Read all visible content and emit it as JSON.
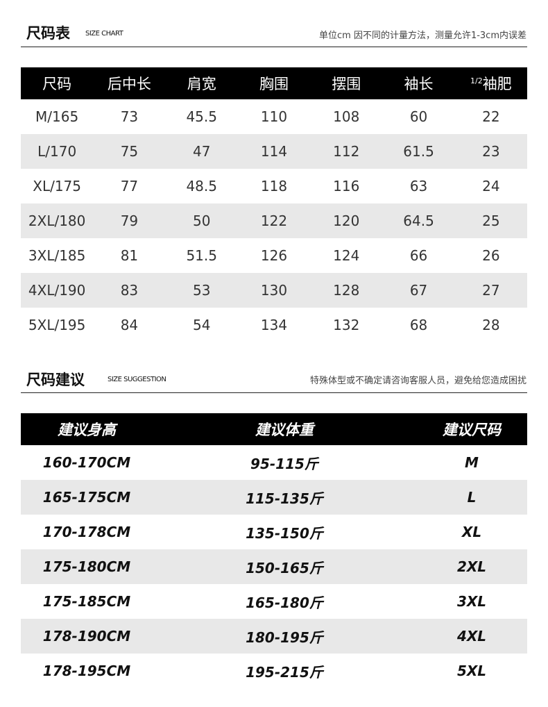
{
  "size_chart": {
    "title": "尺码表",
    "subtitle": "SIZE CHART",
    "note": "单位cm 因不同的计量方法，测量允许1-3cm内误差",
    "headers": [
      "尺码",
      "后中长",
      "肩宽",
      "胸围",
      "摆围",
      "袖长",
      "袖肥"
    ],
    "half_prefix": "1/2",
    "rows": [
      [
        "M/165",
        "73",
        "45.5",
        "110",
        "108",
        "60",
        "22"
      ],
      [
        "L/170",
        "75",
        "47",
        "114",
        "112",
        "61.5",
        "23"
      ],
      [
        "XL/175",
        "77",
        "48.5",
        "118",
        "116",
        "63",
        "24"
      ],
      [
        "2XL/180",
        "79",
        "50",
        "122",
        "120",
        "64.5",
        "25"
      ],
      [
        "3XL/185",
        "81",
        "51.5",
        "126",
        "124",
        "66",
        "26"
      ],
      [
        "4XL/190",
        "83",
        "53",
        "130",
        "128",
        "67",
        "27"
      ],
      [
        "5XL/195",
        "84",
        "54",
        "134",
        "132",
        "68",
        "28"
      ]
    ]
  },
  "size_suggestion": {
    "title": "尺码建议",
    "subtitle": "SIZE SUGGESTION",
    "note": "特殊体型或不确定请咨询客服人员，避免给您造成困扰",
    "headers": [
      "建议身高",
      "建议体重",
      "建议尺码"
    ],
    "rows": [
      [
        "160-170CM",
        "95-115斤",
        "M"
      ],
      [
        "165-175CM",
        "115-135斤",
        "L"
      ],
      [
        "170-178CM",
        "135-150斤",
        "XL"
      ],
      [
        "175-180CM",
        "150-165斤",
        "2XL"
      ],
      [
        "175-185CM",
        "165-180斤",
        "3XL"
      ],
      [
        "178-190CM",
        "180-195斤",
        "4XL"
      ],
      [
        "178-195CM",
        "195-215斤",
        "5XL"
      ]
    ]
  }
}
